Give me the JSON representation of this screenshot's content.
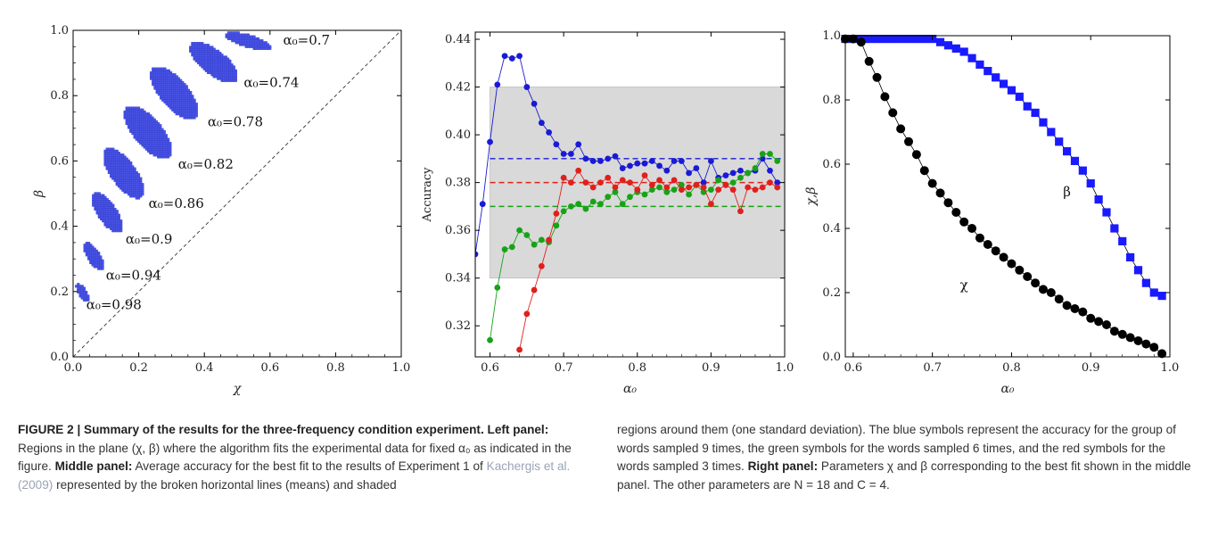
{
  "chart_data": [
    {
      "type": "scatter",
      "panel": "left",
      "xlabel": "χ",
      "ylabel": "β",
      "xlim": [
        0.0,
        1.0
      ],
      "ylim": [
        0.0,
        1.0
      ],
      "xticks": [
        "0.0",
        "0.2",
        "0.4",
        "0.6",
        "0.8",
        "1.0"
      ],
      "yticks": [
        "0.0",
        "0.2",
        "0.4",
        "0.6",
        "0.8",
        "1.0"
      ],
      "diagonal": "dashed y = x",
      "region_color": "#4a55e6",
      "regions": [
        {
          "label": "α₀=0.7",
          "x_range": [
            0.44,
            0.62
          ],
          "y_range": [
            0.93,
            1.0
          ]
        },
        {
          "label": "α₀=0.74",
          "x_range": [
            0.33,
            0.52
          ],
          "y_range": [
            0.82,
            0.98
          ]
        },
        {
          "label": "α₀=0.78",
          "x_range": [
            0.21,
            0.4
          ],
          "y_range": [
            0.7,
            0.91
          ]
        },
        {
          "label": "α₀=0.82",
          "x_range": [
            0.13,
            0.32
          ],
          "y_range": [
            0.58,
            0.79
          ]
        },
        {
          "label": "α₀=0.86",
          "x_range": [
            0.07,
            0.23
          ],
          "y_range": [
            0.46,
            0.66
          ]
        },
        {
          "label": "α₀=0.9",
          "x_range": [
            0.04,
            0.16
          ],
          "y_range": [
            0.36,
            0.52
          ]
        },
        {
          "label": "α₀=0.94",
          "x_range": [
            0.02,
            0.1
          ],
          "y_range": [
            0.25,
            0.36
          ]
        },
        {
          "label": "α₀=0.98",
          "x_range": [
            0.0,
            0.05
          ],
          "y_range": [
            0.16,
            0.23
          ]
        }
      ]
    },
    {
      "type": "line",
      "panel": "middle",
      "xlabel": "α₀",
      "ylabel": "Accuracy",
      "xlim": [
        0.58,
        1.0
      ],
      "ylim": [
        0.307,
        0.443
      ],
      "xticks": [
        "0.6",
        "0.7",
        "0.8",
        "0.9",
        "1.0"
      ],
      "yticks": [
        "0.32",
        "0.34",
        "0.36",
        "0.38",
        "0.40",
        "0.42",
        "0.44"
      ],
      "shaded_band": {
        "y_range": [
          0.34,
          0.42
        ],
        "color": "#d9d9d9"
      },
      "means": [
        {
          "value": 0.39,
          "color": "#1a1ad6"
        },
        {
          "value": 0.38,
          "color": "#e0201c"
        },
        {
          "value": 0.37,
          "color": "#17a317"
        }
      ],
      "series": [
        {
          "color": "#1a1ad6",
          "x": [
            0.58,
            0.59,
            0.6,
            0.61,
            0.62,
            0.63,
            0.64,
            0.65,
            0.66,
            0.67,
            0.68,
            0.69,
            0.7,
            0.71,
            0.72,
            0.73,
            0.74,
            0.75,
            0.76,
            0.77,
            0.78,
            0.79,
            0.8,
            0.81,
            0.82,
            0.83,
            0.84,
            0.85,
            0.86,
            0.87,
            0.88,
            0.89,
            0.9,
            0.91,
            0.92,
            0.93,
            0.94,
            0.95,
            0.96,
            0.97,
            0.98,
            0.99
          ],
          "y": [
            0.35,
            0.371,
            0.397,
            0.421,
            0.433,
            0.432,
            0.433,
            0.42,
            0.413,
            0.405,
            0.401,
            0.396,
            0.392,
            0.392,
            0.396,
            0.39,
            0.389,
            0.389,
            0.39,
            0.391,
            0.386,
            0.387,
            0.388,
            0.388,
            0.389,
            0.387,
            0.385,
            0.389,
            0.389,
            0.384,
            0.386,
            0.38,
            0.389,
            0.382,
            0.383,
            0.384,
            0.385,
            0.384,
            0.385,
            0.39,
            0.385,
            0.38
          ]
        },
        {
          "color": "#17a317",
          "x": [
            0.6,
            0.61,
            0.62,
            0.63,
            0.64,
            0.65,
            0.66,
            0.67,
            0.68,
            0.69,
            0.7,
            0.71,
            0.72,
            0.73,
            0.74,
            0.75,
            0.76,
            0.77,
            0.78,
            0.79,
            0.8,
            0.81,
            0.82,
            0.83,
            0.84,
            0.85,
            0.86,
            0.87,
            0.88,
            0.89,
            0.9,
            0.91,
            0.92,
            0.93,
            0.94,
            0.95,
            0.96,
            0.97,
            0.98,
            0.99
          ],
          "y": [
            0.314,
            0.336,
            0.352,
            0.353,
            0.36,
            0.358,
            0.354,
            0.356,
            0.355,
            0.362,
            0.368,
            0.37,
            0.371,
            0.369,
            0.372,
            0.371,
            0.374,
            0.376,
            0.371,
            0.374,
            0.376,
            0.375,
            0.377,
            0.378,
            0.376,
            0.377,
            0.379,
            0.375,
            0.379,
            0.376,
            0.377,
            0.381,
            0.379,
            0.38,
            0.382,
            0.384,
            0.386,
            0.392,
            0.392,
            0.389
          ]
        },
        {
          "color": "#e0201c",
          "x": [
            0.64,
            0.65,
            0.66,
            0.67,
            0.68,
            0.69,
            0.7,
            0.71,
            0.72,
            0.73,
            0.74,
            0.75,
            0.76,
            0.77,
            0.78,
            0.79,
            0.8,
            0.81,
            0.82,
            0.83,
            0.84,
            0.85,
            0.86,
            0.87,
            0.88,
            0.89,
            0.9,
            0.91,
            0.92,
            0.93,
            0.94,
            0.95,
            0.96,
            0.97,
            0.98,
            0.99
          ],
          "y": [
            0.31,
            0.325,
            0.335,
            0.345,
            0.356,
            0.367,
            0.382,
            0.38,
            0.385,
            0.38,
            0.378,
            0.38,
            0.382,
            0.378,
            0.381,
            0.38,
            0.377,
            0.383,
            0.379,
            0.381,
            0.378,
            0.381,
            0.377,
            0.378,
            0.379,
            0.378,
            0.371,
            0.377,
            0.379,
            0.377,
            0.368,
            0.378,
            0.377,
            0.378,
            0.38,
            0.378
          ]
        }
      ]
    },
    {
      "type": "scatter",
      "panel": "right",
      "xlabel": "α₀",
      "ylabel": "χ,β",
      "xlim": [
        0.59,
        1.0
      ],
      "ylim": [
        0.0,
        1.0
      ],
      "xticks": [
        "0.6",
        "0.7",
        "0.8",
        "0.9",
        "1.0"
      ],
      "yticks": [
        "0.0",
        "0.2",
        "0.4",
        "0.6",
        "0.8",
        "1.0"
      ],
      "annotations": [
        "β",
        "χ"
      ],
      "series": [
        {
          "name": "β",
          "color": "#1a1aff",
          "marker": "square",
          "x": [
            0.59,
            0.6,
            0.61,
            0.62,
            0.63,
            0.64,
            0.65,
            0.66,
            0.67,
            0.68,
            0.69,
            0.7,
            0.71,
            0.72,
            0.73,
            0.74,
            0.75,
            0.76,
            0.77,
            0.78,
            0.79,
            0.8,
            0.81,
            0.82,
            0.83,
            0.84,
            0.85,
            0.86,
            0.87,
            0.88,
            0.89,
            0.9,
            0.91,
            0.92,
            0.93,
            0.94,
            0.95,
            0.96,
            0.97,
            0.98,
            0.99
          ],
          "y": [
            0.99,
            0.99,
            0.99,
            0.99,
            0.99,
            0.99,
            0.99,
            0.99,
            0.99,
            0.99,
            0.99,
            0.99,
            0.98,
            0.97,
            0.96,
            0.95,
            0.93,
            0.91,
            0.89,
            0.87,
            0.85,
            0.83,
            0.81,
            0.78,
            0.76,
            0.73,
            0.7,
            0.67,
            0.64,
            0.61,
            0.58,
            0.54,
            0.49,
            0.45,
            0.4,
            0.36,
            0.31,
            0.27,
            0.23,
            0.2,
            0.19
          ]
        },
        {
          "name": "χ",
          "color": "#000000",
          "marker": "circle",
          "x": [
            0.59,
            0.6,
            0.61,
            0.62,
            0.63,
            0.64,
            0.65,
            0.66,
            0.67,
            0.68,
            0.69,
            0.7,
            0.71,
            0.72,
            0.73,
            0.74,
            0.75,
            0.76,
            0.77,
            0.78,
            0.79,
            0.8,
            0.81,
            0.82,
            0.83,
            0.84,
            0.85,
            0.86,
            0.87,
            0.88,
            0.89,
            0.9,
            0.91,
            0.92,
            0.93,
            0.94,
            0.95,
            0.96,
            0.97,
            0.98,
            0.99
          ],
          "y": [
            0.99,
            0.99,
            0.98,
            0.92,
            0.87,
            0.81,
            0.76,
            0.71,
            0.67,
            0.63,
            0.58,
            0.54,
            0.51,
            0.48,
            0.45,
            0.42,
            0.4,
            0.37,
            0.35,
            0.33,
            0.31,
            0.29,
            0.27,
            0.25,
            0.23,
            0.21,
            0.2,
            0.18,
            0.16,
            0.15,
            0.14,
            0.12,
            0.11,
            0.1,
            0.08,
            0.07,
            0.06,
            0.05,
            0.04,
            0.03,
            0.01
          ]
        }
      ]
    }
  ],
  "caption": {
    "fig_label": "FIGURE 2 | Summary of the results for the three-frequency condition experiment.",
    "left_label": "Left panel:",
    "left_text": " Regions in the plane (χ, β) where the algorithm fits the experimental data for fixed α₀ as indicated in the figure. ",
    "middle_label": "Middle panel:",
    "middle_text": " Average accuracy for the best fit to the results of Experiment 1 of ",
    "citation": "Kachergis et al. (2009)",
    "middle_text2": " represented by the broken horizontal lines (means) and shaded regions around them (one standard deviation). The blue symbols represent the accuracy for the group of words sampled 9 times, the green symbols for the words sampled 6 times, and the red symbols for the words sampled 3 times. ",
    "right_label": "Right panel:",
    "right_text": " Parameters χ and β corresponding to the best fit shown in the middle panel. The other parameters are N = 18 and C = 4."
  }
}
